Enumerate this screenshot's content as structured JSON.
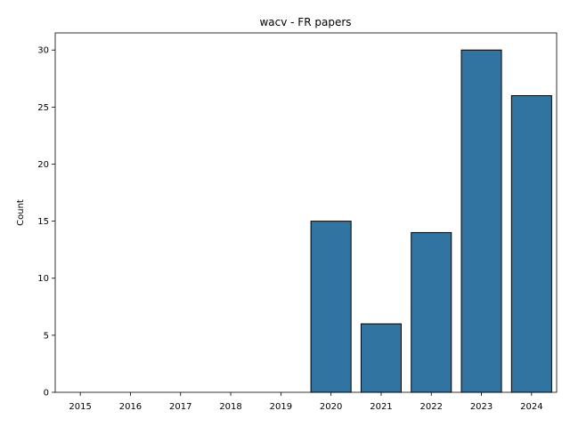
{
  "chart_data": {
    "type": "bar",
    "title": "wacv - FR papers",
    "xlabel": "",
    "ylabel": "Count",
    "categories": [
      "2015",
      "2016",
      "2017",
      "2018",
      "2019",
      "2020",
      "2021",
      "2022",
      "2023",
      "2024"
    ],
    "values": [
      0,
      0,
      0,
      0,
      0,
      15,
      6,
      14,
      30,
      26
    ],
    "ylim": [
      0,
      31.5
    ],
    "yticks": [
      0,
      5,
      10,
      15,
      20,
      25,
      30
    ],
    "grid": false,
    "bar_color": "#3274a1",
    "bar_edge_color": "#000000"
  }
}
